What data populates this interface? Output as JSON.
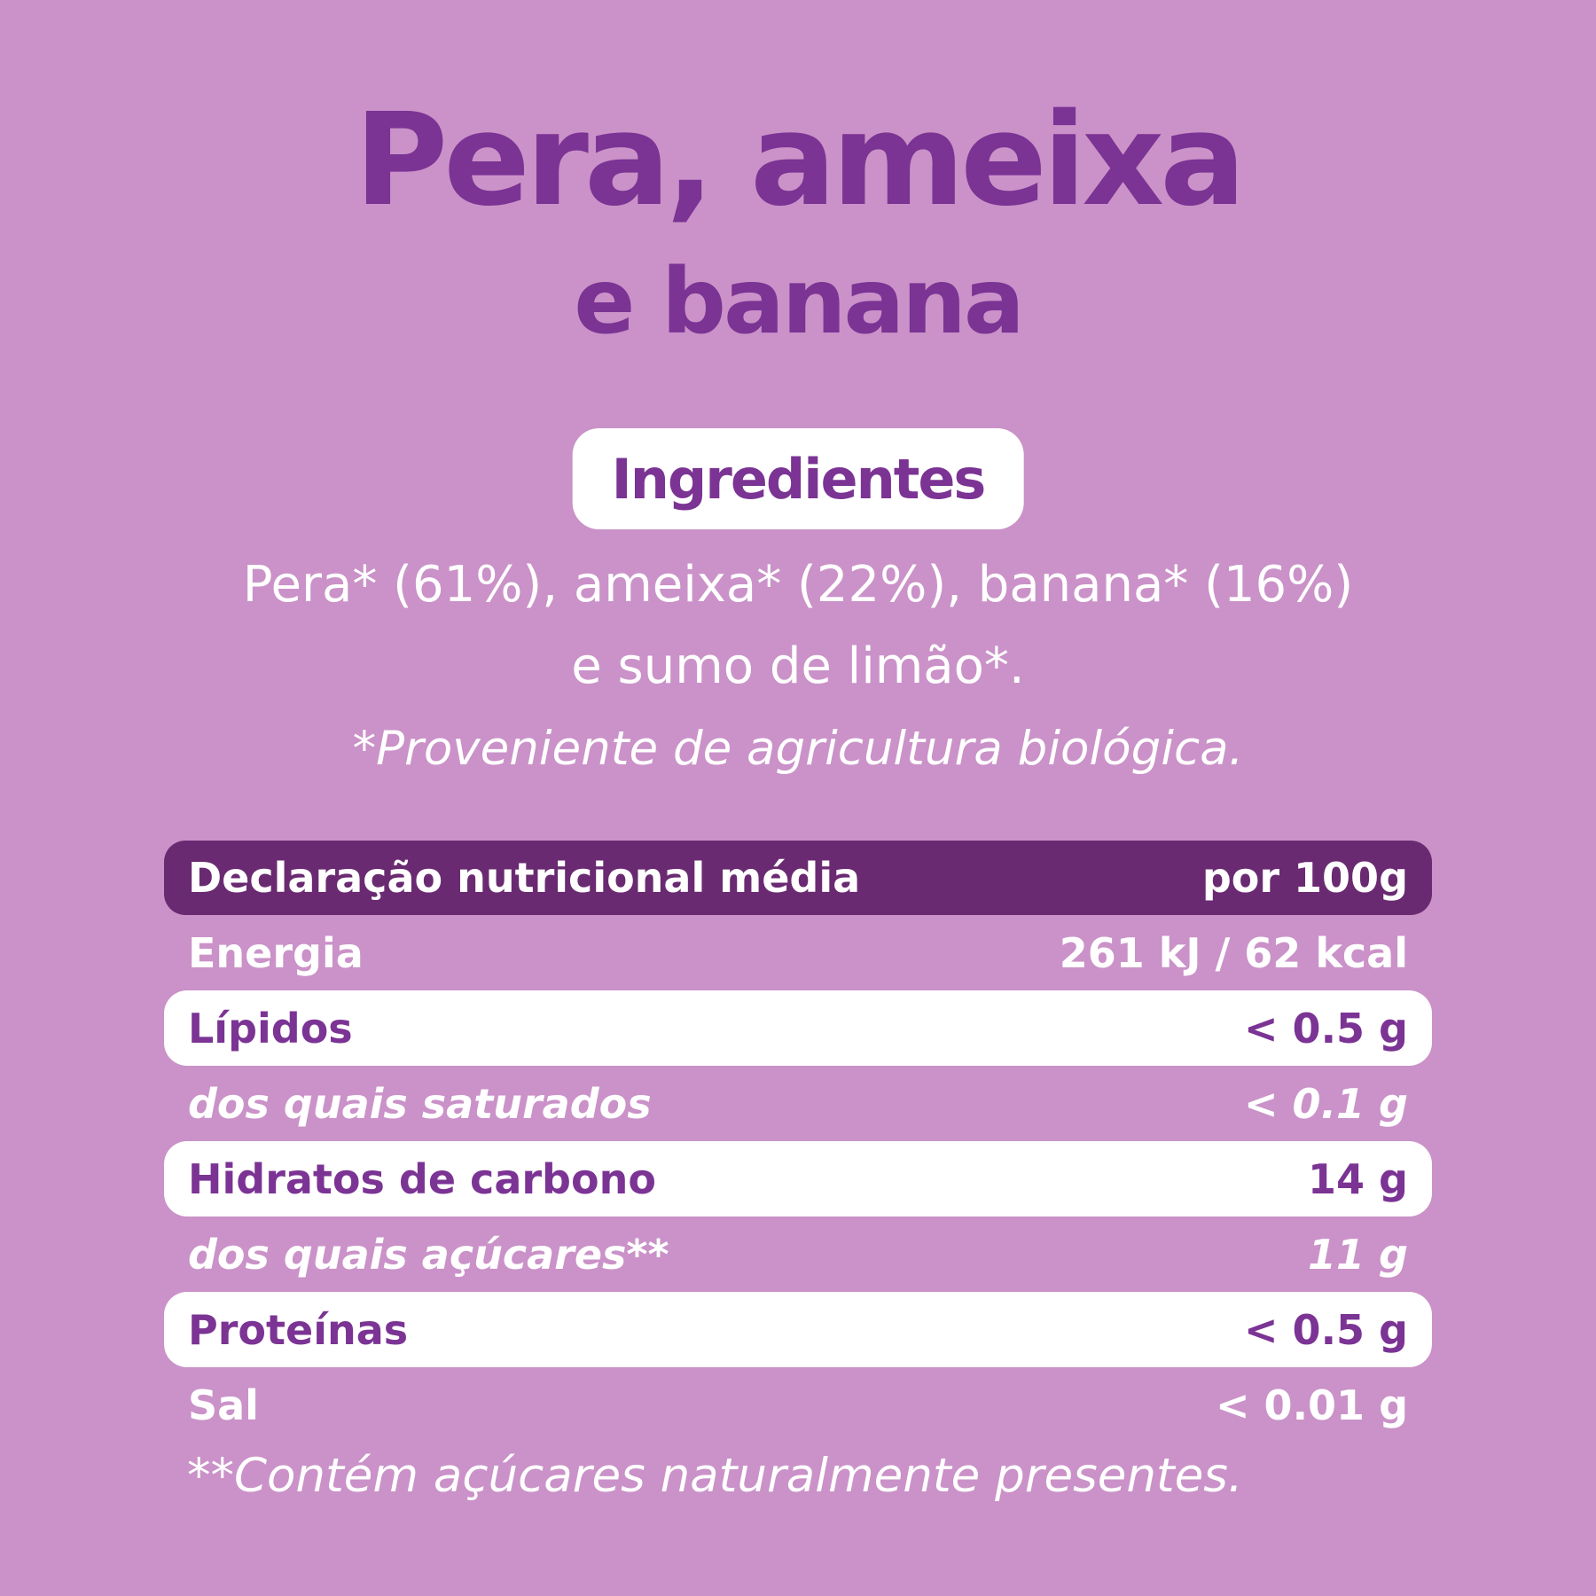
{
  "colors": {
    "bg": "#CA92C8",
    "accent": "#7B3394",
    "header": "#6A2A71",
    "white": "#FFFFFF"
  },
  "title": {
    "line1": "Pera, ameixa",
    "line2": "e banana"
  },
  "ingredients": {
    "badge_label": "Ingredientes",
    "line1": "Pera* (61%), ameixa* (22%), banana* (16%)",
    "line2": "e sumo de limão*.",
    "note": "*Proveniente de agricultura biológica."
  },
  "nutrition": {
    "header": {
      "label": "Declaração nutricional média",
      "unit": "por 100g"
    },
    "rows": [
      {
        "label": "Energia",
        "value": "261 kJ / 62 kcal"
      },
      {
        "label": "Lípidos",
        "value": "< 0.5 g"
      },
      {
        "label": "dos quais saturados",
        "value": "< 0.1 g"
      },
      {
        "label": "Hidratos de carbono",
        "value": "14 g"
      },
      {
        "label": "dos quais açúcares**",
        "value": "11 g"
      },
      {
        "label": "Proteínas",
        "value": "< 0.5 g"
      },
      {
        "label": "Sal",
        "value": "< 0.01 g"
      }
    ],
    "footnote": "**Contém açúcares naturalmente presentes."
  }
}
